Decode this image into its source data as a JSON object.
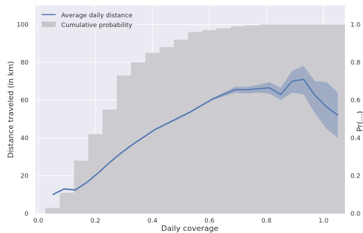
{
  "chart_data": {
    "type": "bar",
    "xlabel": "Daily coverage",
    "ylabel": "Distance traveled (in km)",
    "y2label": "Pr(...)",
    "xlim": [
      -0.01,
      1.075
    ],
    "ylim": [
      0,
      110
    ],
    "y2lim": [
      0,
      1.1
    ],
    "grid": true,
    "legend_position": "top-left",
    "x_ticks": [
      "0.0",
      "0.2",
      "0.4",
      "0.6",
      "0.8",
      "1.0"
    ],
    "y_ticks": [
      "0",
      "20",
      "40",
      "60",
      "80",
      "100"
    ],
    "y2_ticks": [
      "0.0",
      "0.2",
      "0.4",
      "0.6",
      "0.8",
      "1.0"
    ],
    "colors": {
      "line": "#4c72b0",
      "band": "#4c72b0",
      "bars": "#c8c8cc",
      "background": "#eaeaf2"
    },
    "series": [
      {
        "name": "Cumulative probability",
        "kind": "bar",
        "axis": "right",
        "bin_width": 0.05,
        "x": [
          0.05,
          0.1,
          0.15,
          0.2,
          0.25,
          0.3,
          0.35,
          0.4,
          0.45,
          0.5,
          0.55,
          0.6,
          0.65,
          0.7,
          0.75,
          0.8,
          0.85,
          0.9,
          0.95,
          1.0,
          1.05
        ],
        "values": [
          0.03,
          0.11,
          0.28,
          0.42,
          0.55,
          0.73,
          0.8,
          0.85,
          0.88,
          0.92,
          0.96,
          0.97,
          0.98,
          0.99,
          0.995,
          1.0,
          1.0,
          1.0,
          1.0,
          1.0,
          1.0
        ]
      },
      {
        "name": "Average daily distance",
        "kind": "line",
        "axis": "left",
        "x": [
          0.05,
          0.09,
          0.13,
          0.17,
          0.21,
          0.25,
          0.29,
          0.33,
          0.37,
          0.41,
          0.45,
          0.49,
          0.53,
          0.57,
          0.61,
          0.65,
          0.69,
          0.73,
          0.77,
          0.81,
          0.85,
          0.89,
          0.93,
          0.97,
          1.01,
          1.05
        ],
        "values": [
          10,
          13,
          12.5,
          16.5,
          21.5,
          27,
          32,
          36.5,
          40.5,
          44.5,
          47.5,
          50.5,
          53.5,
          57,
          60.5,
          63,
          65.5,
          65.5,
          66,
          66.5,
          63,
          70,
          71,
          62.5,
          56.5,
          52
        ],
        "ci_low": [
          9.5,
          12.5,
          12,
          16,
          21,
          26.5,
          31.5,
          36,
          40,
          44,
          47,
          50,
          53,
          56.5,
          60,
          62,
          64,
          63.5,
          64,
          63.5,
          60,
          64,
          63,
          53,
          45,
          40
        ],
        "ci_high": [
          10.5,
          13.5,
          13,
          17,
          22,
          27.5,
          32.5,
          37,
          41,
          45,
          48,
          51,
          54,
          57.5,
          61,
          64,
          67,
          67,
          68,
          69.5,
          66.5,
          75.5,
          78,
          70,
          69.5,
          64
        ]
      }
    ]
  }
}
